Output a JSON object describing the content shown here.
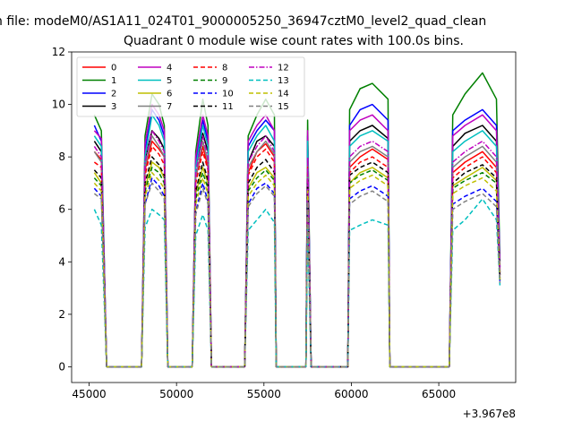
{
  "figure": {
    "suptitle": "n file: modeM0/AS1A11_024T01_9000005250_36947cztM0_level2_quad_clean"
  },
  "chart_data": {
    "type": "line",
    "title": "Quadrant 0 module wise count rates with 100.0s bins.",
    "xlabel": "",
    "ylabel": "",
    "x_offset_label": "+3.967e8",
    "xlim": [
      44000,
      69400
    ],
    "ylim": [
      -0.6,
      12
    ],
    "xticks": [
      45000,
      50000,
      55000,
      60000,
      65000
    ],
    "xtick_labels": [
      "45000",
      "50000",
      "55000",
      "60000",
      "65000"
    ],
    "yticks": [
      0,
      2,
      4,
      6,
      8,
      10,
      12
    ],
    "ytick_labels": [
      "0",
      "2",
      "4",
      "6",
      "8",
      "10",
      "12"
    ],
    "grid": false,
    "legend_position": "top-left",
    "legend_columns": 4,
    "x": [
      45300,
      45700,
      46000,
      46100,
      48000,
      48200,
      48600,
      49000,
      49300,
      49500,
      50900,
      51100,
      51500,
      51800,
      52000,
      53900,
      54100,
      54600,
      55100,
      55600,
      55700,
      57400,
      57500,
      57700,
      59800,
      59900,
      60500,
      61200,
      62100,
      62200,
      63300,
      63400,
      63500,
      65600,
      65800,
      66500,
      67500,
      68300,
      68500
    ],
    "series": [
      {
        "name": "0",
        "color": "#ff0000",
        "dash": "solid",
        "values": [
          8.2,
          7.9,
          0,
          0,
          0,
          7.5,
          8.6,
          8.3,
          8.0,
          0,
          0,
          7.2,
          8.4,
          7.6,
          0,
          0,
          7.4,
          8.2,
          8.5,
          8.0,
          0,
          0,
          7.8,
          0,
          0,
          7.6,
          8.0,
          8.3,
          7.9,
          0,
          0,
          0,
          0,
          0,
          7.4,
          7.8,
          8.2,
          7.6,
          3.5
        ]
      },
      {
        "name": "1",
        "color": "#008000",
        "dash": "solid",
        "values": [
          9.6,
          9.0,
          0,
          0,
          0,
          8.8,
          10.4,
          10.0,
          9.2,
          0,
          0,
          8.2,
          10.2,
          9.2,
          0,
          0,
          8.8,
          9.6,
          10.2,
          9.6,
          0,
          0,
          9.4,
          0,
          0,
          9.8,
          10.6,
          10.8,
          10.2,
          0,
          0,
          0,
          0,
          0,
          9.6,
          10.4,
          11.2,
          10.2,
          4.0
        ]
      },
      {
        "name": "2",
        "color": "#0000ff",
        "dash": "solid",
        "values": [
          9.2,
          8.6,
          0,
          0,
          0,
          8.2,
          9.8,
          9.4,
          8.8,
          0,
          0,
          7.8,
          9.4,
          8.6,
          0,
          0,
          8.4,
          9.0,
          9.4,
          9.0,
          0,
          0,
          8.8,
          0,
          0,
          9.2,
          9.8,
          10.0,
          9.4,
          0,
          0,
          0,
          0,
          0,
          9.0,
          9.4,
          9.8,
          9.2,
          3.8
        ]
      },
      {
        "name": "3",
        "color": "#000000",
        "dash": "solid",
        "values": [
          8.6,
          8.2,
          0,
          0,
          0,
          7.9,
          9.0,
          8.7,
          8.3,
          0,
          0,
          7.6,
          8.9,
          8.2,
          0,
          0,
          7.8,
          8.6,
          8.8,
          8.4,
          0,
          0,
          8.3,
          0,
          0,
          8.6,
          9.0,
          9.2,
          8.7,
          0,
          0,
          0,
          0,
          0,
          8.4,
          8.9,
          9.2,
          8.6,
          3.6
        ]
      },
      {
        "name": "4",
        "color": "#bf00bf",
        "dash": "solid",
        "values": [
          9.0,
          8.7,
          0,
          0,
          0,
          8.5,
          10.0,
          9.6,
          9.0,
          0,
          0,
          8.0,
          9.6,
          8.8,
          0,
          0,
          8.6,
          9.2,
          9.6,
          9.0,
          0,
          0,
          9.0,
          0,
          0,
          9.0,
          9.4,
          9.6,
          9.0,
          0,
          0,
          0,
          0,
          0,
          8.8,
          9.2,
          9.6,
          9.0,
          3.7
        ]
      },
      {
        "name": "5",
        "color": "#00bfbf",
        "dash": "solid",
        "values": [
          8.8,
          8.4,
          0,
          0,
          0,
          8.0,
          9.6,
          9.2,
          8.6,
          0,
          0,
          7.6,
          9.2,
          8.4,
          0,
          0,
          8.2,
          8.8,
          9.2,
          8.6,
          0,
          0,
          8.6,
          0,
          0,
          8.4,
          8.8,
          9.0,
          8.6,
          0,
          0,
          0,
          0,
          0,
          8.2,
          8.6,
          9.0,
          8.4,
          3.5
        ]
      },
      {
        "name": "6",
        "color": "#bfbf00",
        "dash": "solid",
        "values": [
          7.4,
          7.0,
          0,
          0,
          0,
          6.8,
          7.8,
          7.6,
          7.2,
          0,
          0,
          6.6,
          7.6,
          7.0,
          0,
          0,
          6.8,
          7.4,
          7.6,
          7.2,
          0,
          0,
          7.0,
          0,
          0,
          7.0,
          7.4,
          7.6,
          7.2,
          0,
          0,
          0,
          0,
          0,
          6.9,
          7.2,
          7.6,
          7.1,
          3.3
        ]
      },
      {
        "name": "7",
        "color": "#808080",
        "dash": "solid",
        "values": [
          8.2,
          7.8,
          0,
          0,
          0,
          7.6,
          8.8,
          8.4,
          8.0,
          0,
          0,
          7.2,
          8.6,
          7.8,
          0,
          0,
          7.6,
          8.2,
          8.6,
          8.1,
          0,
          0,
          7.8,
          0,
          0,
          7.8,
          8.2,
          8.4,
          8.0,
          0,
          0,
          0,
          0,
          0,
          7.6,
          8.0,
          8.4,
          7.8,
          3.4
        ]
      },
      {
        "name": "8",
        "color": "#ff0000",
        "dash": "dashed",
        "values": [
          7.8,
          7.6,
          0,
          0,
          0,
          7.3,
          8.4,
          8.1,
          7.7,
          0,
          0,
          7.0,
          8.2,
          7.5,
          0,
          0,
          7.3,
          8.0,
          8.3,
          7.8,
          0,
          0,
          7.6,
          0,
          0,
          7.4,
          7.8,
          8.0,
          7.6,
          0,
          0,
          0,
          0,
          0,
          7.2,
          7.6,
          8.0,
          7.4,
          3.4
        ]
      },
      {
        "name": "9",
        "color": "#008000",
        "dash": "dashed",
        "values": [
          7.2,
          6.9,
          0,
          0,
          0,
          6.7,
          7.6,
          7.4,
          7.0,
          0,
          0,
          6.4,
          7.4,
          6.8,
          0,
          0,
          6.7,
          7.2,
          7.5,
          7.1,
          0,
          0,
          6.9,
          0,
          0,
          7.0,
          7.3,
          7.5,
          7.1,
          0,
          0,
          0,
          0,
          0,
          6.8,
          7.1,
          7.4,
          7.0,
          3.3
        ]
      },
      {
        "name": "10",
        "color": "#0000ff",
        "dash": "dashed",
        "values": [
          6.8,
          6.5,
          0,
          0,
          0,
          6.2,
          7.2,
          6.9,
          6.5,
          0,
          0,
          5.9,
          7.0,
          6.3,
          0,
          0,
          6.2,
          6.8,
          7.0,
          6.6,
          0,
          0,
          6.5,
          0,
          0,
          6.4,
          6.7,
          6.9,
          6.5,
          0,
          0,
          0,
          0,
          0,
          6.2,
          6.5,
          6.8,
          6.3,
          3.2
        ]
      },
      {
        "name": "11",
        "color": "#000000",
        "dash": "dashed",
        "values": [
          7.5,
          7.2,
          0,
          0,
          0,
          7.0,
          8.0,
          7.7,
          7.3,
          0,
          0,
          6.7,
          7.8,
          7.1,
          0,
          0,
          7.0,
          7.6,
          7.9,
          7.4,
          0,
          0,
          7.2,
          0,
          0,
          7.3,
          7.6,
          7.8,
          7.4,
          0,
          0,
          0,
          0,
          0,
          7.0,
          7.4,
          7.7,
          7.2,
          3.4
        ]
      },
      {
        "name": "12",
        "color": "#bf00bf",
        "dash": "dashdot",
        "values": [
          8.4,
          8.0,
          0,
          0,
          0,
          7.8,
          9.0,
          8.6,
          8.2,
          0,
          0,
          7.4,
          8.8,
          8.0,
          0,
          0,
          7.8,
          8.4,
          8.8,
          8.2,
          0,
          0,
          8.0,
          0,
          0,
          8.0,
          8.4,
          8.6,
          8.2,
          0,
          0,
          0,
          0,
          0,
          7.8,
          8.2,
          8.6,
          8.0,
          3.5
        ]
      },
      {
        "name": "13",
        "color": "#00bfbf",
        "dash": "dashed",
        "values": [
          6.0,
          5.4,
          0,
          0,
          0,
          5.3,
          6.0,
          5.8,
          5.6,
          0,
          0,
          5.0,
          5.8,
          5.2,
          0,
          0,
          5.2,
          5.6,
          6.0,
          5.5,
          0,
          0,
          5.4,
          0,
          0,
          5.2,
          5.4,
          5.6,
          5.4,
          0,
          0,
          0,
          0,
          0,
          5.2,
          5.6,
          6.4,
          5.6,
          3.1
        ]
      },
      {
        "name": "14",
        "color": "#bfbf00",
        "dash": "dashed",
        "values": [
          7.0,
          6.7,
          0,
          0,
          0,
          6.5,
          7.4,
          7.1,
          6.8,
          0,
          0,
          6.2,
          7.2,
          6.6,
          0,
          0,
          6.5,
          7.0,
          7.3,
          6.9,
          0,
          0,
          6.7,
          0,
          0,
          6.8,
          7.1,
          7.3,
          6.9,
          0,
          0,
          0,
          0,
          0,
          6.6,
          6.9,
          7.2,
          6.7,
          3.3
        ]
      },
      {
        "name": "15",
        "color": "#808080",
        "dash": "dashed",
        "values": [
          6.6,
          6.4,
          0,
          0,
          0,
          6.2,
          7.0,
          6.7,
          6.4,
          0,
          0,
          5.8,
          6.8,
          6.2,
          0,
          0,
          6.1,
          6.6,
          6.9,
          6.5,
          0,
          0,
          6.3,
          0,
          0,
          6.2,
          6.5,
          6.7,
          6.3,
          0,
          0,
          0,
          0,
          0,
          6.0,
          6.3,
          6.6,
          6.1,
          3.2
        ]
      }
    ]
  }
}
